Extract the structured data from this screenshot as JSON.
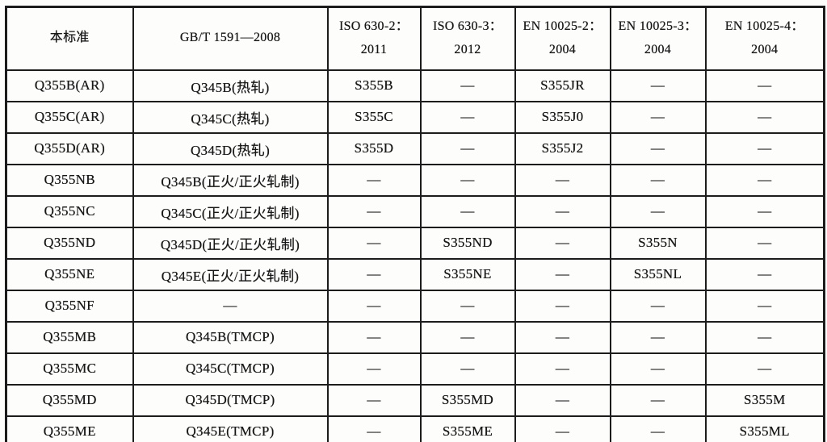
{
  "colors": {
    "ink": "#171717",
    "paper": "#fdfdfc",
    "border": "#1c1c1c"
  },
  "table": {
    "columns": [
      {
        "lines": [
          "本标准"
        ]
      },
      {
        "lines": [
          "GB/T 1591—2008"
        ]
      },
      {
        "lines": [
          "ISO 630-2：",
          "2011"
        ]
      },
      {
        "lines": [
          "ISO 630-3：",
          "2012"
        ]
      },
      {
        "lines": [
          "EN 10025-2：",
          "2004"
        ]
      },
      {
        "lines": [
          "EN 10025-3：",
          "2004"
        ]
      },
      {
        "lines": [
          "EN 10025-4：",
          "2004"
        ]
      }
    ],
    "rows": [
      {
        "cells": [
          "Q355B(AR)",
          "Q345B(热轧)",
          "S355B",
          "—",
          "S355JR",
          "—",
          "—"
        ]
      },
      {
        "cells": [
          "Q355C(AR)",
          "Q345C(热轧)",
          "S355C",
          "—",
          "S355J0",
          "—",
          "—"
        ]
      },
      {
        "cells": [
          "Q355D(AR)",
          "Q345D(热轧)",
          "S355D",
          "—",
          "S355J2",
          "—",
          "—"
        ]
      },
      {
        "cells": [
          "Q355NB",
          "Q345B(正火/正火轧制)",
          "—",
          "—",
          "—",
          "—",
          "—"
        ]
      },
      {
        "cells": [
          "Q355NC",
          "Q345C(正火/正火轧制)",
          "—",
          "—",
          "—",
          "—",
          "—"
        ]
      },
      {
        "cells": [
          "Q355ND",
          "Q345D(正火/正火轧制)",
          "—",
          "S355ND",
          "—",
          "S355N",
          "—"
        ]
      },
      {
        "cells": [
          "Q355NE",
          "Q345E(正火/正火轧制)",
          "—",
          "S355NE",
          "—",
          "S355NL",
          "—"
        ]
      },
      {
        "cells": [
          "Q355NF",
          "—",
          "—",
          "—",
          "—",
          "—",
          "—"
        ]
      },
      {
        "cells": [
          "Q355MB",
          "Q345B(TMCP)",
          "—",
          "—",
          "—",
          "—",
          "—"
        ]
      },
      {
        "cells": [
          "Q355MC",
          "Q345C(TMCP)",
          "—",
          "—",
          "—",
          "—",
          "—"
        ]
      },
      {
        "cells": [
          "Q355MD",
          "Q345D(TMCP)",
          "—",
          "S355MD",
          "—",
          "—",
          "S355M"
        ]
      },
      {
        "cells": [
          "Q355ME",
          "Q345E(TMCP)",
          "—",
          "S355ME",
          "—",
          "—",
          "S355ML"
        ]
      }
    ]
  }
}
